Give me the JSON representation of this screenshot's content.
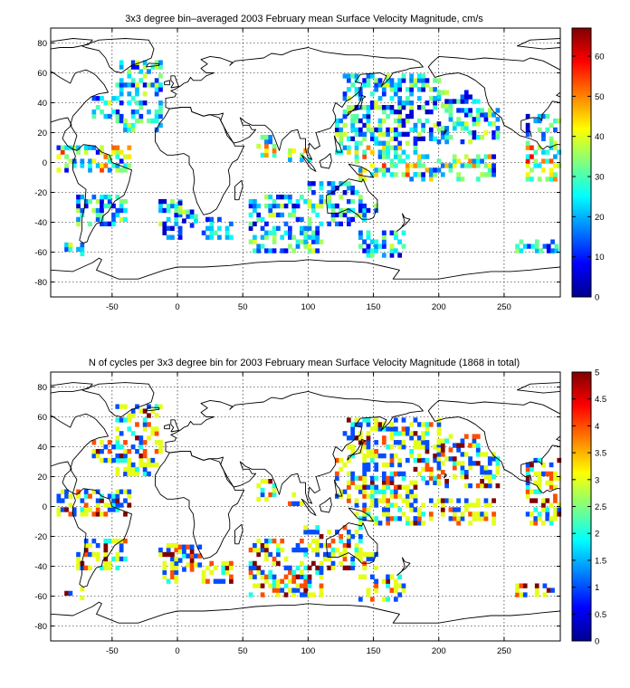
{
  "chart_data": [
    {
      "type": "heatmap",
      "title": "3x3 degree bin–averaged 2003 February mean Surface Velocity Magnitude, cm/s",
      "xlim": [
        -97,
        293
      ],
      "ylim": [
        -90,
        90
      ],
      "x_ticks": [
        "-50",
        "0",
        "50",
        "100",
        "150",
        "200",
        "250"
      ],
      "y_ticks": [
        "80",
        "60",
        "40",
        "20",
        "0",
        "-20",
        "-40",
        "-60",
        "-80"
      ],
      "colorbar": {
        "min": 0,
        "max": 67,
        "ticks": [
          "60",
          "50",
          "40",
          "30",
          "20",
          "10",
          "0"
        ]
      },
      "grid": true,
      "bin_size_deg": 3
    },
    {
      "type": "heatmap",
      "title": "N of cycles per 3x3 degree bin for 2003 February mean Surface Velocity Magnitude (1868 in total)",
      "xlim": [
        -97,
        293
      ],
      "ylim": [
        -90,
        90
      ],
      "x_ticks": [
        "-50",
        "0",
        "50",
        "100",
        "150",
        "200",
        "250"
      ],
      "y_ticks": [
        "80",
        "60",
        "40",
        "20",
        "0",
        "-20",
        "-40",
        "-60",
        "-80"
      ],
      "colorbar": {
        "min": 0,
        "max": 5,
        "ticks": [
          "5",
          "4.5",
          "4",
          "3.5",
          "3",
          "2.5",
          "2",
          "1.5",
          "1",
          "0.5",
          "0"
        ]
      },
      "grid": true,
      "bin_size_deg": 3
    }
  ]
}
